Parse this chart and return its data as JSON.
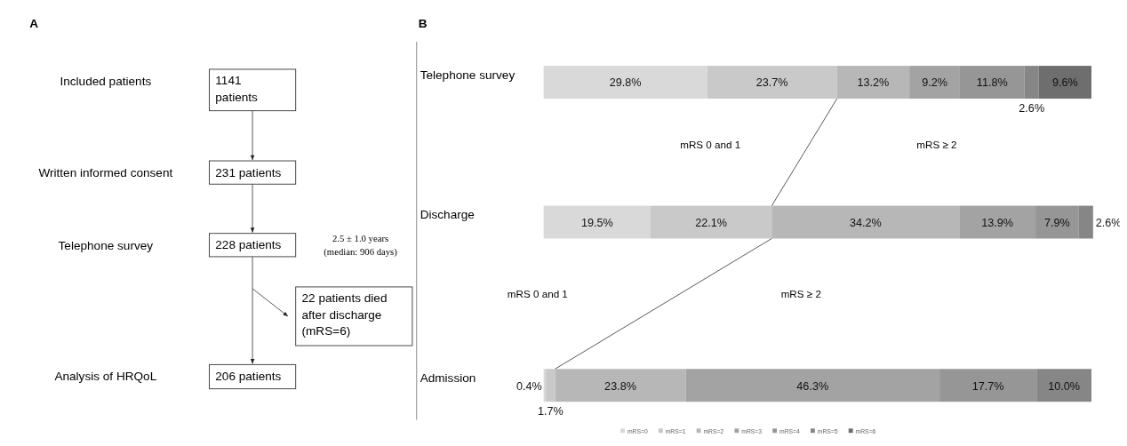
{
  "chart_data": [
    {
      "type": "other",
      "title": "A",
      "annotations": [
        "Included patients",
        "Written informed consent",
        "Telephone survey",
        "Analysis of HRQoL",
        "1141 patients",
        "231 patients",
        "228 patients",
        "206 patients",
        "22 patients died after discharge (mRS=6)",
        "2.5 ± 1.0 years (median: 906 days)"
      ]
    },
    {
      "type": "bar",
      "title": "B",
      "orientation": "horizontal",
      "stacked": true,
      "legend": "bottom",
      "categories": [
        "Telephone survey",
        "Discharge",
        "Admission"
      ],
      "annotations": [
        "mRS 0 and 1",
        "mRS ≥ 2",
        "mRS 0 and 1",
        "mRS ≥ 2"
      ],
      "series": [
        {
          "name": "mRS=0",
          "color": "#d9d9d9",
          "values": [
            29.8,
            19.5,
            0.4
          ],
          "value_labels": [
            "29.8%",
            "19.5%",
            "0.4%"
          ]
        },
        {
          "name": "mRS=1",
          "color": "#c9c9c9",
          "values": [
            23.7,
            22.1,
            1.7
          ],
          "value_labels": [
            "23.7%",
            "22.1%",
            "1.7%"
          ]
        },
        {
          "name": "mRS=2",
          "color": "#b7b7b7",
          "values": [
            13.2,
            34.2,
            23.8
          ],
          "value_labels": [
            "13.2%",
            "34.2%",
            "23.8%"
          ]
        },
        {
          "name": "mRS=3",
          "color": "#a3a3a3",
          "values": [
            9.2,
            13.9,
            46.3
          ],
          "value_labels": [
            "9.2%",
            "13.9%",
            "46.3%"
          ]
        },
        {
          "name": "mRS=4",
          "color": "#969696",
          "values": [
            11.8,
            7.9,
            17.7
          ],
          "value_labels": [
            "11.8%",
            "7.9%",
            "17.7%"
          ]
        },
        {
          "name": "mRS=5",
          "color": "#868686",
          "values": [
            2.6,
            2.6,
            10.0
          ],
          "value_labels": [
            "2.6%",
            "2.6%",
            "10.0%"
          ]
        },
        {
          "name": "mRS=6",
          "color": "#6e6e6e",
          "values": [
            9.6,
            null,
            null
          ],
          "value_labels": [
            "9.6%",
            null,
            null
          ]
        }
      ]
    }
  ]
}
